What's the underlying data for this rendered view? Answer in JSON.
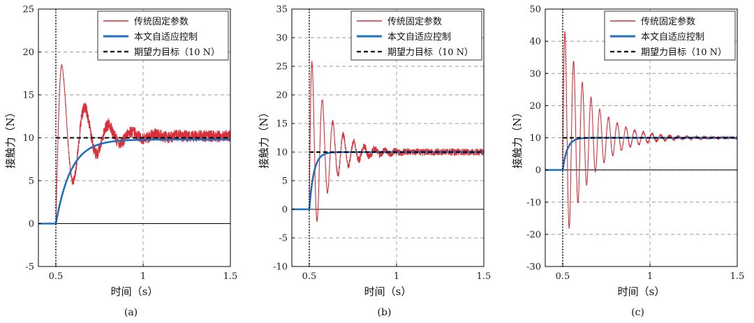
{
  "chart_data": [
    {
      "type": "line",
      "caption": "(a)",
      "xlabel": "时间（s）",
      "ylabel": "接触力（N）",
      "xlim": [
        0.4,
        1.5
      ],
      "ylim": [
        -5,
        25
      ],
      "xticks": [
        0.5,
        1,
        1.5
      ],
      "xtick_labels": [
        "0.5",
        "1",
        "1.5"
      ],
      "yticks": [
        -5,
        0,
        5,
        10,
        15,
        20,
        25
      ],
      "ytick_labels": [
        "-5",
        "0",
        "5",
        "10",
        "15",
        "20",
        "25"
      ],
      "grid": true,
      "legend_position": "top-right",
      "contact_time": 0.5,
      "series": [
        {
          "name": "传统固定参数",
          "color": "#d9303a",
          "kind": "fixed",
          "peak": 18.5,
          "trough": 5.0,
          "second_peak": 12.7,
          "settle_time": 0.8,
          "steady": 10.2,
          "noise": 0.7
        },
        {
          "name": "本文自适应控制",
          "color": "#1f6fbf",
          "kind": "adaptive",
          "steady": 9.8,
          "rise_90_time": 0.7
        },
        {
          "name": "期望力目标（10 N）",
          "color": "#000000",
          "kind": "target",
          "value": 10
        }
      ]
    },
    {
      "type": "line",
      "caption": "(b)",
      "xlabel": "时间（s）",
      "ylabel": "接触力（N）",
      "xlim": [
        0.4,
        1.5
      ],
      "ylim": [
        -10,
        35
      ],
      "xticks": [
        0.5,
        1,
        1.5
      ],
      "xtick_labels": [
        "0.5",
        "1",
        "1.5"
      ],
      "yticks": [
        -10,
        -5,
        0,
        5,
        10,
        15,
        20,
        25,
        30,
        35
      ],
      "ytick_labels": [
        "-10",
        "-5",
        "0",
        "5",
        "10",
        "15",
        "20",
        "25",
        "30",
        "35"
      ],
      "grid": true,
      "legend_position": "top-right",
      "contact_time": 0.5,
      "series": [
        {
          "name": "传统固定参数",
          "color": "#d9303a",
          "kind": "fixed",
          "peak": 25.8,
          "trough": -2.0,
          "oscillation_period": 0.06,
          "settle_time": 0.9,
          "steady": 10.0,
          "noise": 0.6
        },
        {
          "name": "本文自适应控制",
          "color": "#1f6fbf",
          "kind": "adaptive",
          "steady": 10.0,
          "rise_90_time": 0.56
        },
        {
          "name": "期望力目标（10 N）",
          "color": "#000000",
          "kind": "target",
          "value": 10
        }
      ]
    },
    {
      "type": "line",
      "caption": "(c)",
      "xlabel": "时间（s）",
      "ylabel": "接触力（N）",
      "xlim": [
        0.4,
        1.5
      ],
      "ylim": [
        -30,
        50
      ],
      "xticks": [
        0.5,
        1,
        1.5
      ],
      "xtick_labels": [
        "0.5",
        "1",
        "1.5"
      ],
      "yticks": [
        -30,
        -20,
        -10,
        0,
        10,
        20,
        30,
        40,
        50
      ],
      "ytick_labels": [
        "-30",
        "-20",
        "-10",
        "0",
        "10",
        "20",
        "30",
        "40",
        "50"
      ],
      "grid": true,
      "legend_position": "top-right",
      "contact_time": 0.5,
      "series": [
        {
          "name": "传统固定参数",
          "color": "#d9303a",
          "kind": "fixed",
          "peak": 43.0,
          "trough": -18.0,
          "oscillation_period": 0.05,
          "settle_time": 1.3,
          "steady": 10.0,
          "noise": 0.4
        },
        {
          "name": "本文自适应控制",
          "color": "#1f6fbf",
          "kind": "adaptive",
          "steady": 10.0,
          "rise_90_time": 0.56
        },
        {
          "name": "期望力目标（10 N）",
          "color": "#000000",
          "kind": "target",
          "value": 10
        }
      ]
    }
  ]
}
